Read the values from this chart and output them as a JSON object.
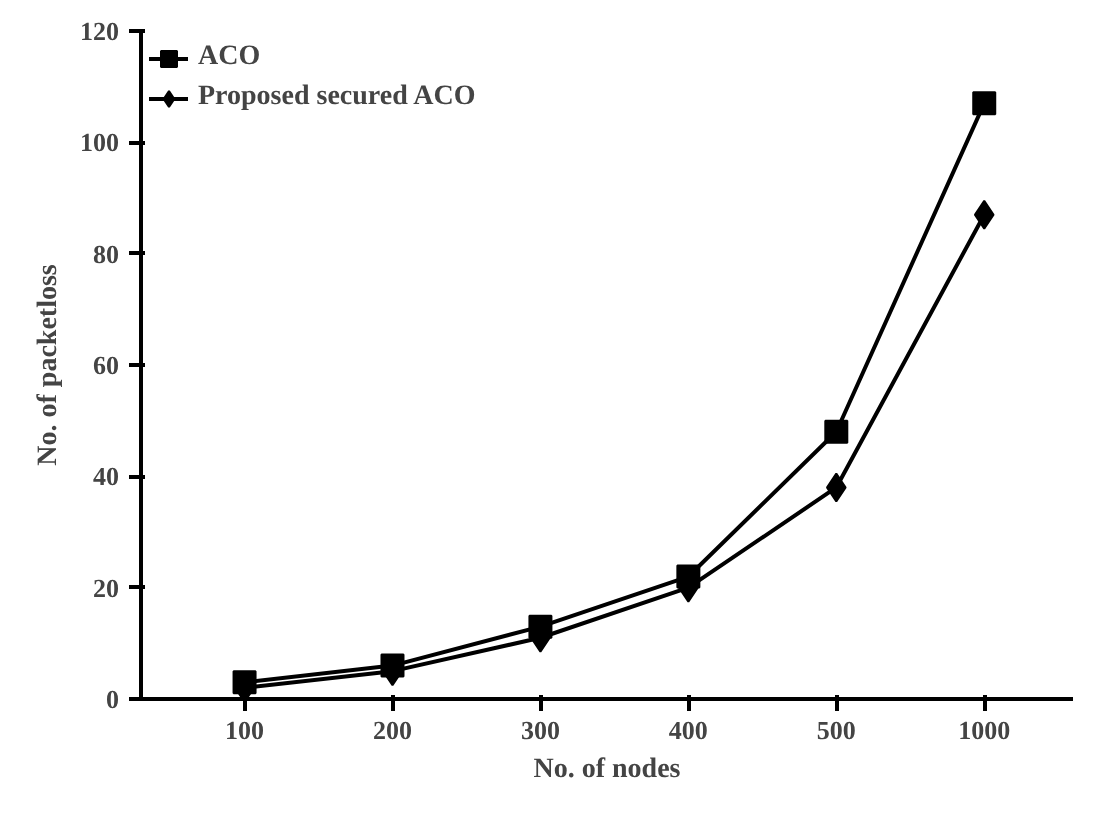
{
  "chart_data": {
    "type": "line",
    "xlabel": "No. of nodes",
    "ylabel": "No. of packetloss",
    "categories": [
      "100",
      "200",
      "300",
      "400",
      "500",
      "1000"
    ],
    "ylim": [
      0,
      120
    ],
    "yticks": [
      0,
      20,
      40,
      60,
      80,
      100,
      120
    ],
    "grid": false,
    "legend": "top left",
    "series": [
      {
        "name": "ACO",
        "color": "#000000",
        "marker": "square",
        "values": [
          3,
          6,
          13,
          22,
          48,
          107
        ]
      },
      {
        "name": "Proposed secured ACO",
        "color": "#000000",
        "marker": "diamond",
        "values": [
          2,
          5,
          11,
          20,
          38,
          87
        ]
      }
    ]
  }
}
